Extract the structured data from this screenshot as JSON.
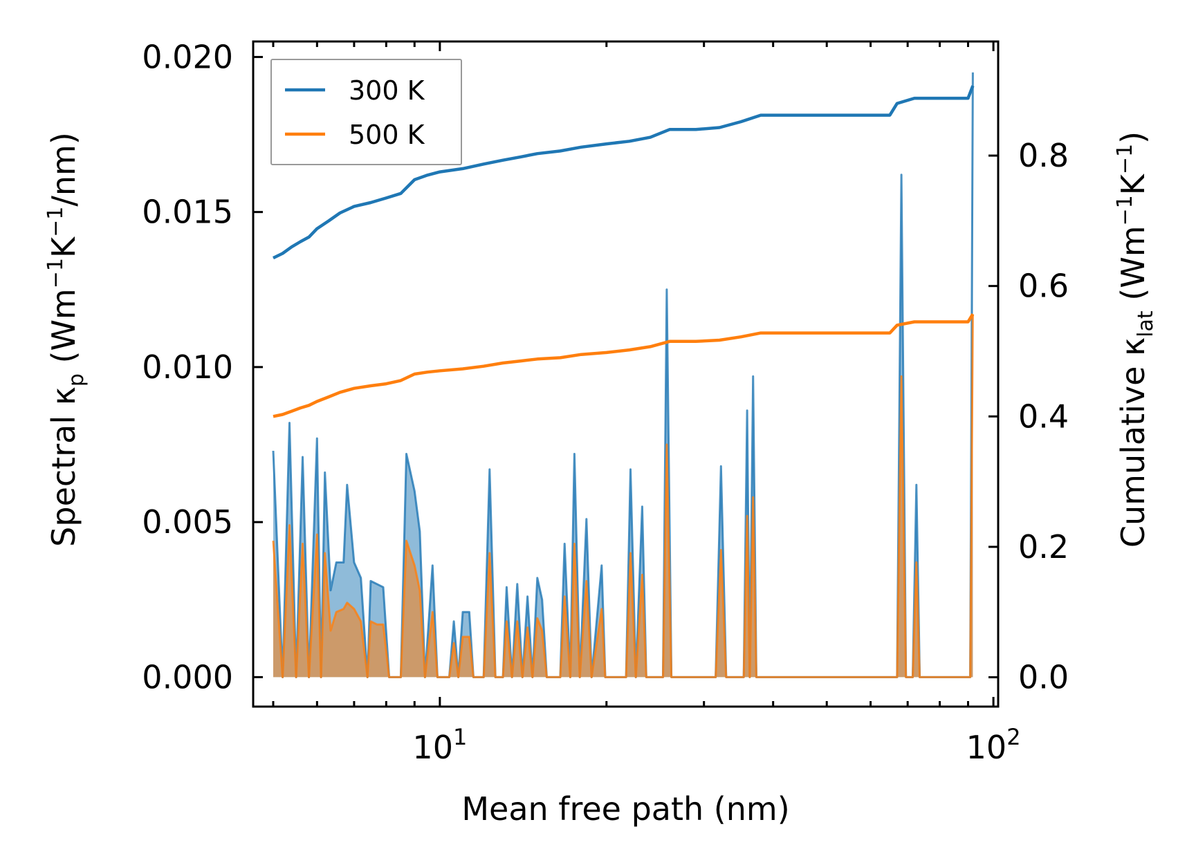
{
  "chart_data": {
    "type": "line",
    "title": "",
    "xlabel": "Mean free path (nm)",
    "ylabel_left": {
      "base": "Spectral κ",
      "sub": "p",
      "unit_prefix": " (Wm",
      "exp1": "−1",
      "mid": "K",
      "exp2": "−1",
      "suffix": "/nm)"
    },
    "ylabel_right": {
      "base": "Cumulative κ",
      "sub": "lat",
      "unit_prefix": " (Wm",
      "exp1": "−1",
      "mid": "K",
      "exp2": "−1",
      "suffix": ")"
    },
    "xscale": "log",
    "xlim": [
      4.6,
      102
    ],
    "ylim_left": [
      -0.00095,
      0.0205
    ],
    "ylim_right": [
      -0.045,
      0.975
    ],
    "x_ticks": [
      {
        "value": 10,
        "base": "10",
        "exp": "1"
      },
      {
        "value": 100,
        "base": "10",
        "exp": "2"
      }
    ],
    "y_left_ticks": [
      {
        "value": 0.0,
        "label": "0.000"
      },
      {
        "value": 0.005,
        "label": "0.005"
      },
      {
        "value": 0.01,
        "label": "0.010"
      },
      {
        "value": 0.015,
        "label": "0.015"
      },
      {
        "value": 0.02,
        "label": "0.020"
      }
    ],
    "y_right_ticks": [
      {
        "value": 0.0,
        "label": "0.0"
      },
      {
        "value": 0.2,
        "label": "0.2"
      },
      {
        "value": 0.4,
        "label": "0.4"
      },
      {
        "value": 0.6,
        "label": "0.6"
      },
      {
        "value": 0.8,
        "label": "0.8"
      }
    ],
    "legend": {
      "position": "upper-left",
      "entries": [
        {
          "label": "300 K",
          "color": "#1f77b4"
        },
        {
          "label": "500 K",
          "color": "#ff7f0e"
        }
      ]
    },
    "series": [
      {
        "name": "300 K",
        "color": "#1f77b4",
        "spectral_peaks": [
          [
            5.0,
            0.0073
          ],
          [
            5.2,
            0.0
          ],
          [
            5.35,
            0.0082
          ],
          [
            5.5,
            0.0
          ],
          [
            5.65,
            0.0071
          ],
          [
            5.8,
            0.0
          ],
          [
            6.0,
            0.0077
          ],
          [
            6.1,
            0.0
          ],
          [
            6.2,
            0.0066
          ],
          [
            6.35,
            0.0028
          ],
          [
            6.5,
            0.0037
          ],
          [
            6.7,
            0.0037
          ],
          [
            6.8,
            0.0062
          ],
          [
            7.0,
            0.0037
          ],
          [
            7.2,
            0.0032
          ],
          [
            7.4,
            0.0
          ],
          [
            7.5,
            0.0031
          ],
          [
            7.7,
            0.003
          ],
          [
            7.9,
            0.0029
          ],
          [
            8.1,
            0.0
          ],
          [
            8.5,
            0.0
          ],
          [
            8.7,
            0.0072
          ],
          [
            9.0,
            0.006
          ],
          [
            9.2,
            0.0047
          ],
          [
            9.4,
            0.0
          ],
          [
            9.7,
            0.0036
          ],
          [
            9.9,
            0.0
          ],
          [
            10.4,
            0.0
          ],
          [
            10.6,
            0.0018
          ],
          [
            10.8,
            0.0
          ],
          [
            11.0,
            0.0021
          ],
          [
            11.3,
            0.0021
          ],
          [
            11.5,
            0.0
          ],
          [
            12.0,
            0.0
          ],
          [
            12.3,
            0.0067
          ],
          [
            12.6,
            0.0
          ],
          [
            13.0,
            0.0
          ],
          [
            13.2,
            0.0029
          ],
          [
            13.5,
            0.0
          ],
          [
            13.8,
            0.003
          ],
          [
            14.1,
            0.0
          ],
          [
            14.4,
            0.0026
          ],
          [
            14.7,
            0.0
          ],
          [
            15.0,
            0.0032
          ],
          [
            15.3,
            0.0025
          ],
          [
            15.6,
            0.0
          ],
          [
            16.5,
            0.0
          ],
          [
            16.8,
            0.0043
          ],
          [
            17.2,
            0.0
          ],
          [
            17.5,
            0.0072
          ],
          [
            17.9,
            0.0
          ],
          [
            18.4,
            0.0051
          ],
          [
            18.8,
            0.0
          ],
          [
            19.6,
            0.0036
          ],
          [
            19.9,
            0.0
          ],
          [
            21.7,
            0.0
          ],
          [
            22.1,
            0.0067
          ],
          [
            22.6,
            0.0
          ],
          [
            23.2,
            0.0055
          ],
          [
            23.6,
            0.0
          ],
          [
            25.3,
            0.0
          ],
          [
            25.7,
            0.0125
          ],
          [
            26.2,
            0.0
          ],
          [
            31.5,
            0.0
          ],
          [
            32.2,
            0.0068
          ],
          [
            32.9,
            0.0
          ],
          [
            35.4,
            0.0
          ],
          [
            35.9,
            0.0086
          ],
          [
            36.3,
            0.0
          ],
          [
            36.8,
            0.0097
          ],
          [
            37.3,
            0.0
          ],
          [
            67.0,
            0.0
          ],
          [
            68.2,
            0.0162
          ],
          [
            69.5,
            0.0
          ],
          [
            71.5,
            0.0
          ],
          [
            72.6,
            0.0062
          ],
          [
            73.6,
            0.0
          ],
          [
            90.8,
            0.0
          ],
          [
            91.8,
            0.0195
          ]
        ],
        "cumulative": [
          [
            5.0,
            0.643
          ],
          [
            5.2,
            0.65
          ],
          [
            5.4,
            0.66
          ],
          [
            5.6,
            0.668
          ],
          [
            5.8,
            0.675
          ],
          [
            6.0,
            0.688
          ],
          [
            6.3,
            0.7
          ],
          [
            6.6,
            0.712
          ],
          [
            7.0,
            0.722
          ],
          [
            7.5,
            0.728
          ],
          [
            8.0,
            0.735
          ],
          [
            8.5,
            0.742
          ],
          [
            9.0,
            0.763
          ],
          [
            9.5,
            0.77
          ],
          [
            10.0,
            0.775
          ],
          [
            11.0,
            0.78
          ],
          [
            12.0,
            0.787
          ],
          [
            13.0,
            0.793
          ],
          [
            14.0,
            0.798
          ],
          [
            15.0,
            0.803
          ],
          [
            16.5,
            0.807
          ],
          [
            18.0,
            0.813
          ],
          [
            20.0,
            0.818
          ],
          [
            22.0,
            0.822
          ],
          [
            24.0,
            0.828
          ],
          [
            26.0,
            0.84
          ],
          [
            29.0,
            0.84
          ],
          [
            32.0,
            0.843
          ],
          [
            35.0,
            0.852
          ],
          [
            38.0,
            0.862
          ],
          [
            45.0,
            0.862
          ],
          [
            55.0,
            0.862
          ],
          [
            65.0,
            0.862
          ],
          [
            67.0,
            0.88
          ],
          [
            72.0,
            0.888
          ],
          [
            80.0,
            0.888
          ],
          [
            90.0,
            0.888
          ],
          [
            91.8,
            0.907
          ]
        ]
      },
      {
        "name": "500 K",
        "color": "#ff7f0e",
        "spectral_peaks": [
          [
            5.0,
            0.0044
          ],
          [
            5.2,
            0.0
          ],
          [
            5.35,
            0.0049
          ],
          [
            5.5,
            0.0
          ],
          [
            5.65,
            0.0043
          ],
          [
            5.8,
            0.0
          ],
          [
            6.0,
            0.0046
          ],
          [
            6.1,
            0.0
          ],
          [
            6.2,
            0.004
          ],
          [
            6.35,
            0.0015
          ],
          [
            6.5,
            0.0021
          ],
          [
            6.7,
            0.0022
          ],
          [
            6.8,
            0.0024
          ],
          [
            7.0,
            0.0022
          ],
          [
            7.2,
            0.0018
          ],
          [
            7.4,
            0.0
          ],
          [
            7.5,
            0.0018
          ],
          [
            7.7,
            0.0017
          ],
          [
            7.9,
            0.0017
          ],
          [
            8.1,
            0.0
          ],
          [
            8.5,
            0.0
          ],
          [
            8.7,
            0.0044
          ],
          [
            9.0,
            0.0036
          ],
          [
            9.2,
            0.0028
          ],
          [
            9.4,
            0.0
          ],
          [
            9.7,
            0.0021
          ],
          [
            9.9,
            0.0
          ],
          [
            10.4,
            0.0
          ],
          [
            10.6,
            0.0011
          ],
          [
            10.8,
            0.0
          ],
          [
            11.0,
            0.0013
          ],
          [
            11.3,
            0.0013
          ],
          [
            11.5,
            0.0
          ],
          [
            12.0,
            0.0
          ],
          [
            12.3,
            0.004
          ],
          [
            12.6,
            0.0
          ],
          [
            13.0,
            0.0
          ],
          [
            13.2,
            0.0018
          ],
          [
            13.5,
            0.0
          ],
          [
            13.8,
            0.0018
          ],
          [
            14.1,
            0.0
          ],
          [
            14.4,
            0.0016
          ],
          [
            14.7,
            0.0
          ],
          [
            15.0,
            0.0019
          ],
          [
            15.3,
            0.0015
          ],
          [
            15.6,
            0.0
          ],
          [
            16.5,
            0.0
          ],
          [
            16.8,
            0.0026
          ],
          [
            17.2,
            0.0
          ],
          [
            17.5,
            0.0043
          ],
          [
            17.9,
            0.0
          ],
          [
            18.4,
            0.0031
          ],
          [
            18.8,
            0.0
          ],
          [
            19.6,
            0.0022
          ],
          [
            19.9,
            0.0
          ],
          [
            21.7,
            0.0
          ],
          [
            22.1,
            0.004
          ],
          [
            22.6,
            0.0
          ],
          [
            23.2,
            0.0033
          ],
          [
            23.6,
            0.0
          ],
          [
            25.3,
            0.0
          ],
          [
            25.7,
            0.0075
          ],
          [
            26.2,
            0.0
          ],
          [
            31.5,
            0.0
          ],
          [
            32.2,
            0.0041
          ],
          [
            32.9,
            0.0
          ],
          [
            35.4,
            0.0
          ],
          [
            35.9,
            0.0052
          ],
          [
            36.3,
            0.0
          ],
          [
            36.8,
            0.0058
          ],
          [
            37.3,
            0.0
          ],
          [
            67.0,
            0.0
          ],
          [
            68.2,
            0.0097
          ],
          [
            69.5,
            0.0
          ],
          [
            71.5,
            0.0
          ],
          [
            72.6,
            0.0037
          ],
          [
            73.6,
            0.0
          ],
          [
            90.8,
            0.0
          ],
          [
            91.8,
            0.0117
          ]
        ],
        "cumulative": [
          [
            5.0,
            0.4
          ],
          [
            5.2,
            0.403
          ],
          [
            5.4,
            0.408
          ],
          [
            5.6,
            0.413
          ],
          [
            5.8,
            0.417
          ],
          [
            6.0,
            0.423
          ],
          [
            6.3,
            0.43
          ],
          [
            6.6,
            0.437
          ],
          [
            7.0,
            0.443
          ],
          [
            7.5,
            0.447
          ],
          [
            8.0,
            0.45
          ],
          [
            8.5,
            0.455
          ],
          [
            9.0,
            0.465
          ],
          [
            9.5,
            0.468
          ],
          [
            10.0,
            0.47
          ],
          [
            11.0,
            0.473
          ],
          [
            12.0,
            0.477
          ],
          [
            13.0,
            0.482
          ],
          [
            14.0,
            0.485
          ],
          [
            15.0,
            0.488
          ],
          [
            16.5,
            0.49
          ],
          [
            18.0,
            0.495
          ],
          [
            20.0,
            0.498
          ],
          [
            22.0,
            0.502
          ],
          [
            24.0,
            0.507
          ],
          [
            26.0,
            0.515
          ],
          [
            29.0,
            0.515
          ],
          [
            32.0,
            0.517
          ],
          [
            35.0,
            0.522
          ],
          [
            38.0,
            0.528
          ],
          [
            45.0,
            0.528
          ],
          [
            55.0,
            0.528
          ],
          [
            65.0,
            0.528
          ],
          [
            67.0,
            0.54
          ],
          [
            72.0,
            0.545
          ],
          [
            80.0,
            0.545
          ],
          [
            90.0,
            0.545
          ],
          [
            91.8,
            0.557
          ]
        ]
      }
    ]
  }
}
